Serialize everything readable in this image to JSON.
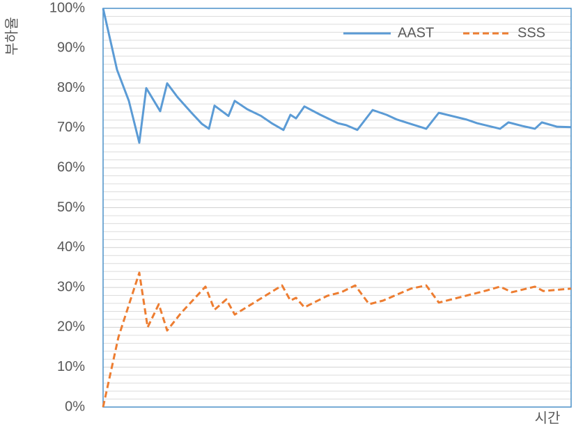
{
  "chart_data": {
    "type": "line",
    "y_label": "부하율",
    "x_label": "시간",
    "xlim": [
      0,
      672
    ],
    "ylim": [
      0,
      100
    ],
    "yticks": [
      {
        "value": 0,
        "label": "0%"
      },
      {
        "value": 10,
        "label": "10%"
      },
      {
        "value": 20,
        "label": "20%"
      },
      {
        "value": 30,
        "label": "30%"
      },
      {
        "value": 40,
        "label": "40%"
      },
      {
        "value": 50,
        "label": "50%"
      },
      {
        "value": 60,
        "label": "60%"
      },
      {
        "value": 70,
        "label": "70%"
      },
      {
        "value": 80,
        "label": "80%"
      },
      {
        "value": 90,
        "label": "90%"
      },
      {
        "value": 100,
        "label": "100%"
      }
    ],
    "minor_yticks": [
      2,
      4,
      6,
      8,
      12,
      14,
      16,
      18,
      22,
      24,
      26,
      28,
      32,
      34,
      36,
      38,
      42,
      44,
      46,
      48,
      52,
      54,
      56,
      58,
      62,
      64,
      66,
      68,
      72,
      74,
      76,
      78,
      82,
      84,
      86,
      88,
      92,
      94,
      96,
      98
    ],
    "grid": true,
    "legend": "top-right",
    "series": [
      {
        "name": "AAST",
        "color": "#5b9bd5",
        "dash": false,
        "x": [
          0,
          20,
          37,
          52,
          62,
          82,
          92,
          107,
          127,
          142,
          152,
          160,
          180,
          189,
          207,
          227,
          242,
          259,
          269,
          277,
          289,
          312,
          337,
          349,
          365,
          387,
          407,
          422,
          442,
          464,
          482,
          522,
          537,
          570,
          582,
          602,
          620,
          630,
          652,
          672
        ],
        "values": [
          100,
          84.6,
          76.8,
          66.3,
          80,
          74.2,
          81.2,
          77.7,
          73.8,
          71,
          69.8,
          75.6,
          73,
          76.8,
          74.7,
          73,
          71.2,
          69.5,
          73.3,
          72.4,
          75.4,
          73.3,
          71.2,
          70.7,
          69.5,
          74.5,
          73.3,
          72.1,
          71,
          69.8,
          73.8,
          72.1,
          71.2,
          69.8,
          71.4,
          70.5,
          69.8,
          71.4,
          70.3,
          70.2
        ]
      },
      {
        "name": "SSS",
        "color": "#ed7d31",
        "dash": true,
        "x": [
          0,
          22,
          52,
          64,
          80,
          92,
          112,
          147,
          160,
          177,
          189,
          257,
          269,
          277,
          289,
          322,
          342,
          362,
          382,
          402,
          442,
          464,
          482,
          532,
          552,
          570,
          587,
          620,
          632,
          672
        ],
        "values": [
          0,
          17.5,
          33.7,
          20,
          25.8,
          19.2,
          23.6,
          30.2,
          24.4,
          27,
          23.2,
          30.5,
          26.7,
          27.4,
          25,
          27.9,
          28.8,
          30.5,
          25.8,
          26.7,
          29.7,
          30.5,
          26.2,
          28.4,
          29.3,
          30.2,
          28.8,
          30.2,
          29.1,
          29.7
        ]
      }
    ]
  }
}
